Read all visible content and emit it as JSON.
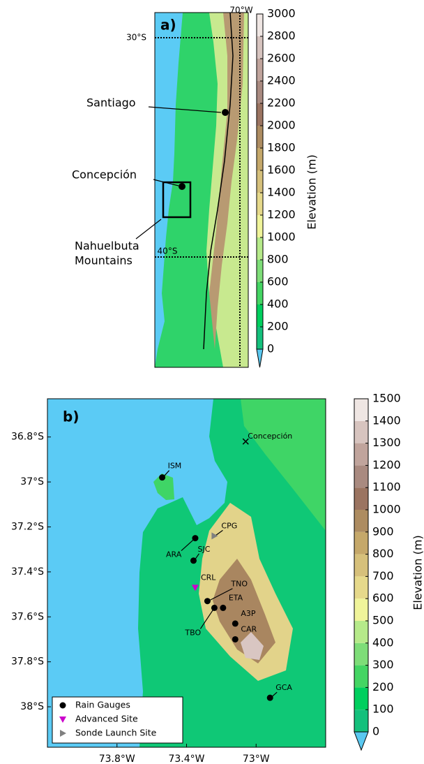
{
  "panel_a": {
    "label": "a)",
    "lon_label": "70°W",
    "lat_labels": [
      "30°S",
      "40°S"
    ],
    "places": [
      "Santiago",
      "Concepción",
      "Nahuelbuta",
      "Mountains"
    ],
    "colorbar": {
      "label": "Elevation (m)",
      "ticks": [
        0,
        200,
        400,
        600,
        800,
        1000,
        1200,
        1400,
        1600,
        1800,
        2000,
        2200,
        2400,
        2600,
        2800,
        3000
      ],
      "colors": [
        "#14c07c",
        "#00cf5e",
        "#44d563",
        "#7edd78",
        "#b6ea8a",
        "#f0f49a",
        "#e6d98b",
        "#d6c07b",
        "#c5a86a",
        "#ad8c61",
        "#9b7461",
        "#a98a80",
        "#c0a49c",
        "#d7c4bf",
        "#efe6e3"
      ],
      "under_color": "#5ac8f0"
    }
  },
  "panel_b": {
    "label": "b)",
    "xlim": [
      -74.2,
      -72.6
    ],
    "ylim": [
      -38.18,
      -36.63
    ],
    "xticks": [
      {
        "value": -73.8,
        "label": "73.8°W"
      },
      {
        "value": -73.4,
        "label": "73.4°W"
      },
      {
        "value": -73.0,
        "label": "73°W"
      }
    ],
    "yticks": [
      {
        "value": -36.8,
        "label": "36.8°S"
      },
      {
        "value": -37.0,
        "label": "37°S"
      },
      {
        "value": -37.2,
        "label": "37.2°S"
      },
      {
        "value": -37.4,
        "label": "37.4°S"
      },
      {
        "value": -37.6,
        "label": "37.6°S"
      },
      {
        "value": -37.8,
        "label": "37.8°S"
      },
      {
        "value": -38.0,
        "label": "38°S"
      }
    ],
    "city": {
      "name": "Concepción",
      "lon": -73.06,
      "lat": -36.82
    },
    "legend": [
      {
        "label": "Rain Gauges",
        "color": "#000000",
        "stations": [
          {
            "name": "ISM",
            "lon": -73.54,
            "lat": -36.98
          },
          {
            "name": "ARA",
            "lon": -73.35,
            "lat": -37.25
          },
          {
            "name": "SJC",
            "lon": -73.36,
            "lat": -37.35
          },
          {
            "name": "TNO",
            "lon": -73.28,
            "lat": -37.53
          },
          {
            "name": "TBO",
            "lon": -73.24,
            "lat": -37.56
          },
          {
            "name": "ETA",
            "lon": -73.19,
            "lat": -37.56
          },
          {
            "name": "A3P",
            "lon": -73.12,
            "lat": -37.63
          },
          {
            "name": "CAR",
            "lon": -73.12,
            "lat": -37.7
          },
          {
            "name": "GCA",
            "lon": -72.92,
            "lat": -37.96
          }
        ]
      },
      {
        "label": "Advanced Site",
        "color": "#cc00cc",
        "stations": [
          {
            "name": "CRL",
            "lon": -73.35,
            "lat": -37.47
          }
        ]
      },
      {
        "label": "Sonde Launch Site",
        "color": "#808080",
        "stations": [
          {
            "name": "CPG",
            "lon": -73.24,
            "lat": -37.24
          }
        ]
      }
    ],
    "colorbar": {
      "label": "Elevation (m)",
      "ticks": [
        0,
        100,
        200,
        300,
        400,
        500,
        600,
        700,
        800,
        900,
        1000,
        1100,
        1200,
        1300,
        1400,
        1500
      ],
      "colors": [
        "#14c07c",
        "#00cf5e",
        "#44d563",
        "#7edd78",
        "#b6ea8a",
        "#f0f49a",
        "#e6d98b",
        "#d6c07b",
        "#c5a86a",
        "#ad8c61",
        "#9b7461",
        "#a98a80",
        "#c0a49c",
        "#d7c4bf",
        "#efe6e3"
      ],
      "under_color": "#5ac8f0"
    }
  }
}
